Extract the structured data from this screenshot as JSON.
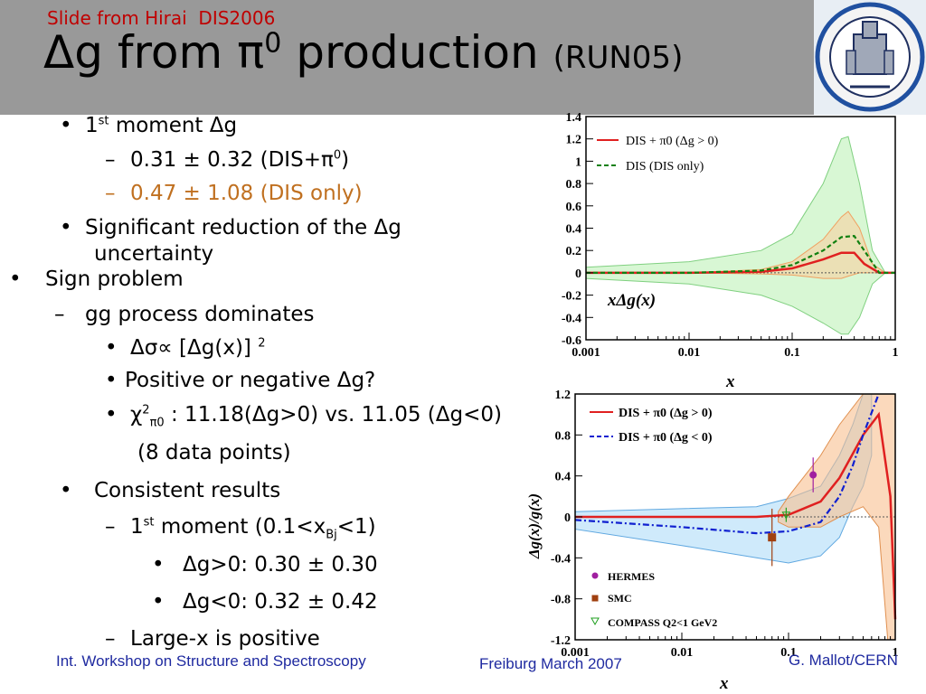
{
  "header": {
    "subtitle": "Slide from Hirai  DIS2006",
    "title_delta": "Δ",
    "title_main": "g from π",
    "title_sup": "0",
    "title_rest": " production ",
    "title_run": "(RUN05)"
  },
  "bullets": {
    "b1_a": "1",
    "b1_sup": "st",
    "b1_b": " moment Δg",
    "b1_1_a": "0.31 ± 0.32 (DIS+π",
    "b1_1_sup": "0",
    "b1_1_b": ")",
    "b1_2": "0.47 ± 1.08 (DIS only)",
    "b2_line1": "Significant reduction of the Δg",
    "b2_line2": "uncertainty",
    "b3": "Sign problem",
    "b3_1": "gg process dominates",
    "b3_1_1_a": "Δσ∝ [Δg(x)]",
    "b3_1_1_sup": "2",
    "b3_1_2": "Positive or negative Δg?",
    "b3_1_3_a": "χ",
    "b3_1_3_sup": "2",
    "b3_1_3_sub": "π0",
    "b3_1_3_b": " : 11.18(Δg>0) vs. 11.05 (Δg<0)",
    "b3_1_3_cont": "(8 data points)",
    "b4": "Consistent results",
    "b4_1_a": "1",
    "b4_1_sup": "st",
    "b4_1_b": "  moment (0.1<x",
    "b4_1_sub": "Bj",
    "b4_1_c": "<1)",
    "b4_1_1": "Δg>0:  0.30 ± 0.30",
    "b4_1_2": "Δg<0:  0.32 ± 0.42",
    "b4_2": "Large-x is positive",
    "bullet_dot": "•",
    "dash": "–"
  },
  "footer": {
    "left": "Int. Workshop on Structure and Spectroscopy",
    "mid": "Freiburg March 2007",
    "right": "G. Mallot/CERN"
  },
  "seal": {
    "icon": "university-seal-icon"
  },
  "chart_data": [
    {
      "type": "line",
      "xscale": "log",
      "xlim": [
        0.001,
        1
      ],
      "ylim": [
        -0.6,
        1.4
      ],
      "xticks": [
        "0.001",
        "0.01",
        "0.1",
        "1"
      ],
      "yticks": [
        "-0.6",
        "-0.4",
        "-0.2",
        "0",
        "0.2",
        "0.4",
        "0.6",
        "0.8",
        "1",
        "1.2",
        "1.4"
      ],
      "xlabel": "x",
      "annotation": "xΔg(x)",
      "legend": [
        "DIS + π0 (Δg > 0)",
        "DIS (DIS only)"
      ],
      "legend_position": "top-left",
      "colors": {
        "dis_pi0": "#e02020",
        "dis_only": "#108010",
        "band_wide": "#a8e8a0",
        "band_narrow": "#f4c090"
      },
      "series": [
        {
          "name": "DIS + π0 (Δg > 0)",
          "x": [
            0.001,
            0.01,
            0.05,
            0.1,
            0.2,
            0.3,
            0.4,
            0.5,
            0.7,
            1.0
          ],
          "y": [
            0.0,
            0.0,
            0.01,
            0.04,
            0.12,
            0.18,
            0.18,
            0.08,
            0.0,
            0.0
          ]
        },
        {
          "name": "DIS (DIS only)",
          "x": [
            0.001,
            0.01,
            0.05,
            0.1,
            0.2,
            0.3,
            0.4,
            0.5,
            0.7,
            1.0
          ],
          "y": [
            0.0,
            0.0,
            0.02,
            0.07,
            0.2,
            0.32,
            0.33,
            0.2,
            0.0,
            0.0
          ]
        }
      ]
    },
    {
      "type": "line",
      "xscale": "log",
      "xlim": [
        0.001,
        1
      ],
      "ylim": [
        -1.2,
        1.2
      ],
      "xticks": [
        "0.001",
        "0.01",
        "0.1",
        "1"
      ],
      "yticks": [
        "-1.2",
        "-0.8",
        "-0.4",
        "0",
        "0.4",
        "0.8",
        "1.2"
      ],
      "xlabel": "x",
      "ylabel": "Δg(x)/g(x)",
      "legend": [
        "DIS + π0 (Δg > 0)",
        "DIS + π0 (Δg < 0)"
      ],
      "legend2": [
        "HERMES",
        "SMC",
        "COMPASS Q2<1 GeV2"
      ],
      "colors": {
        "pos": "#e02020",
        "neg": "#1020d0",
        "band_pos": "#f0b070",
        "band_neg": "#90c8f0",
        "hermes": "#a020a0",
        "smc": "#a04010",
        "compass": "#20a020"
      },
      "series": [
        {
          "name": "DIS + π0 (Δg > 0)",
          "x": [
            0.001,
            0.01,
            0.05,
            0.1,
            0.2,
            0.3,
            0.5,
            0.7,
            0.9,
            1.0
          ],
          "y": [
            0.0,
            0.0,
            0.0,
            0.02,
            0.15,
            0.38,
            0.8,
            1.0,
            0.2,
            -1.0
          ]
        },
        {
          "name": "DIS + π0 (Δg < 0)",
          "x": [
            0.001,
            0.01,
            0.05,
            0.1,
            0.2,
            0.3,
            0.4,
            0.5,
            0.7
          ],
          "y": [
            -0.03,
            -0.1,
            -0.16,
            -0.14,
            -0.05,
            0.2,
            0.5,
            0.8,
            1.2
          ]
        },
        {
          "name": "HERMES",
          "x": [
            0.17
          ],
          "y": [
            0.41
          ],
          "err": [
            0.17
          ]
        },
        {
          "name": "SMC",
          "x": [
            0.07
          ],
          "y": [
            -0.2
          ],
          "err": [
            0.28
          ]
        },
        {
          "name": "COMPASS Q2<1 GeV2",
          "x": [
            0.095
          ],
          "y": [
            0.02
          ],
          "err": [
            0.07
          ]
        }
      ]
    }
  ]
}
